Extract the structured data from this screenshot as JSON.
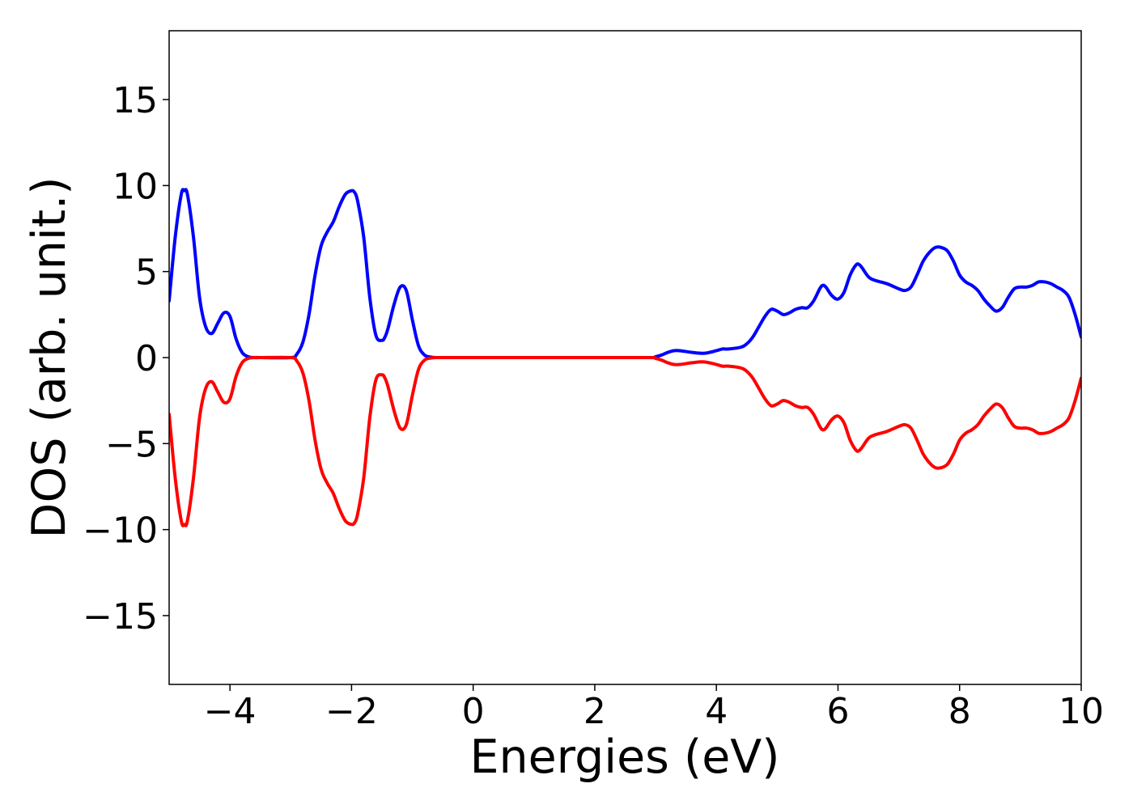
{
  "chart_data": {
    "type": "line",
    "title": "",
    "xlabel": "Energies (eV)",
    "ylabel": "DOS (arb. unit.)",
    "xlim": [
      -5,
      10
    ],
    "ylim": [
      -19,
      19
    ],
    "xticks": [
      -4,
      -2,
      0,
      2,
      4,
      6,
      8,
      10
    ],
    "xtick_labels": [
      "−4",
      "−2",
      "0",
      "2",
      "4",
      "6",
      "8",
      "10"
    ],
    "yticks": [
      15,
      10,
      5,
      0,
      -5,
      -10,
      -15
    ],
    "ytick_labels": [
      "15",
      "10",
      "5",
      "0",
      "−5",
      "−10",
      "−15"
    ],
    "grid": false,
    "legend": "none",
    "series": [
      {
        "color": "#0000ff",
        "x": [
          -5.0,
          -4.9,
          -4.8,
          -4.75,
          -4.7,
          -4.6,
          -4.5,
          -4.4,
          -4.3,
          -4.2,
          -4.1,
          -4.0,
          -3.9,
          -3.8,
          -3.7,
          -3.6,
          -3.5,
          -3.0,
          -2.9,
          -2.8,
          -2.7,
          -2.6,
          -2.5,
          -2.4,
          -2.3,
          -2.2,
          -2.1,
          -2.0,
          -1.95,
          -1.9,
          -1.8,
          -1.7,
          -1.6,
          -1.5,
          -1.45,
          -1.4,
          -1.3,
          -1.2,
          -1.1,
          -1.0,
          -0.9,
          -0.8,
          -0.7,
          -0.6,
          -0.5,
          0.0,
          1.0,
          2.0,
          2.9,
          3.0,
          3.1,
          3.2,
          3.3,
          3.4,
          3.6,
          3.8,
          4.0,
          4.1,
          4.2,
          4.4,
          4.5,
          4.6,
          4.7,
          4.8,
          4.9,
          5.0,
          5.1,
          5.2,
          5.3,
          5.4,
          5.5,
          5.6,
          5.7,
          5.75,
          5.8,
          5.9,
          6.0,
          6.1,
          6.2,
          6.3,
          6.35,
          6.4,
          6.5,
          6.6,
          6.8,
          7.0,
          7.1,
          7.2,
          7.3,
          7.4,
          7.5,
          7.6,
          7.7,
          7.8,
          7.9,
          8.0,
          8.1,
          8.2,
          8.3,
          8.4,
          8.5,
          8.6,
          8.7,
          8.8,
          8.9,
          9.0,
          9.1,
          9.2,
          9.3,
          9.4,
          9.5,
          9.6,
          9.7,
          9.8,
          9.9,
          10.0
        ],
        "y": [
          3.3,
          7.0,
          9.5,
          9.7,
          9.5,
          7.0,
          3.5,
          1.8,
          1.4,
          2.0,
          2.6,
          2.4,
          1.1,
          0.3,
          0.05,
          0.0,
          0.0,
          0.0,
          0.2,
          0.9,
          2.5,
          4.8,
          6.5,
          7.3,
          7.9,
          8.8,
          9.5,
          9.7,
          9.6,
          9.1,
          7.0,
          3.5,
          1.3,
          1.0,
          1.2,
          1.7,
          3.1,
          4.1,
          3.9,
          2.2,
          0.7,
          0.15,
          0.03,
          0.0,
          0.0,
          0.0,
          0.0,
          0.0,
          0.0,
          0.05,
          0.15,
          0.3,
          0.4,
          0.4,
          0.3,
          0.25,
          0.4,
          0.5,
          0.5,
          0.6,
          0.8,
          1.2,
          1.8,
          2.4,
          2.8,
          2.7,
          2.5,
          2.6,
          2.8,
          2.9,
          2.9,
          3.3,
          4.0,
          4.2,
          4.1,
          3.6,
          3.4,
          3.8,
          4.8,
          5.4,
          5.4,
          5.2,
          4.7,
          4.5,
          4.3,
          4.0,
          3.9,
          4.1,
          4.8,
          5.6,
          6.1,
          6.4,
          6.4,
          6.2,
          5.6,
          4.8,
          4.4,
          4.2,
          3.9,
          3.4,
          3.0,
          2.7,
          2.9,
          3.5,
          4.0,
          4.1,
          4.1,
          4.2,
          4.4,
          4.4,
          4.3,
          4.1,
          3.9,
          3.5,
          2.5,
          1.2
        ]
      },
      {
        "color": "#ff0000",
        "x": [
          -5.0,
          -4.9,
          -4.8,
          -4.75,
          -4.7,
          -4.6,
          -4.5,
          -4.4,
          -4.3,
          -4.2,
          -4.1,
          -4.0,
          -3.9,
          -3.8,
          -3.7,
          -3.6,
          -3.5,
          -3.0,
          -2.9,
          -2.8,
          -2.7,
          -2.6,
          -2.5,
          -2.4,
          -2.3,
          -2.2,
          -2.1,
          -2.0,
          -1.95,
          -1.9,
          -1.8,
          -1.7,
          -1.6,
          -1.5,
          -1.45,
          -1.4,
          -1.3,
          -1.2,
          -1.1,
          -1.0,
          -0.9,
          -0.8,
          -0.7,
          -0.6,
          -0.5,
          0.0,
          1.0,
          2.0,
          2.9,
          3.0,
          3.1,
          3.2,
          3.3,
          3.4,
          3.6,
          3.8,
          4.0,
          4.1,
          4.2,
          4.4,
          4.5,
          4.6,
          4.7,
          4.8,
          4.9,
          5.0,
          5.1,
          5.2,
          5.3,
          5.4,
          5.5,
          5.6,
          5.7,
          5.75,
          5.8,
          5.9,
          6.0,
          6.1,
          6.2,
          6.3,
          6.35,
          6.4,
          6.5,
          6.6,
          6.8,
          7.0,
          7.1,
          7.2,
          7.3,
          7.4,
          7.5,
          7.6,
          7.7,
          7.8,
          7.9,
          8.0,
          8.1,
          8.2,
          8.3,
          8.4,
          8.5,
          8.6,
          8.7,
          8.8,
          8.9,
          9.0,
          9.1,
          9.2,
          9.3,
          9.4,
          9.5,
          9.6,
          9.7,
          9.8,
          9.9,
          10.0
        ],
        "y": [
          -3.3,
          -7.0,
          -9.5,
          -9.7,
          -9.5,
          -7.0,
          -3.5,
          -1.8,
          -1.4,
          -2.0,
          -2.6,
          -2.4,
          -1.1,
          -0.3,
          -0.05,
          0.0,
          0.0,
          0.0,
          -0.2,
          -0.9,
          -2.5,
          -4.8,
          -6.5,
          -7.3,
          -7.9,
          -8.8,
          -9.5,
          -9.7,
          -9.6,
          -9.1,
          -7.0,
          -3.5,
          -1.3,
          -1.0,
          -1.2,
          -1.7,
          -3.1,
          -4.1,
          -3.9,
          -2.2,
          -0.7,
          -0.15,
          -0.03,
          0.0,
          0.0,
          0.0,
          0.0,
          0.0,
          0.0,
          -0.05,
          -0.15,
          -0.3,
          -0.4,
          -0.4,
          -0.3,
          -0.25,
          -0.4,
          -0.5,
          -0.5,
          -0.6,
          -0.8,
          -1.2,
          -1.8,
          -2.4,
          -2.8,
          -2.7,
          -2.5,
          -2.6,
          -2.8,
          -2.9,
          -2.9,
          -3.3,
          -4.0,
          -4.2,
          -4.1,
          -3.6,
          -3.4,
          -3.8,
          -4.8,
          -5.4,
          -5.4,
          -5.2,
          -4.7,
          -4.5,
          -4.3,
          -4.0,
          -3.9,
          -4.1,
          -4.8,
          -5.6,
          -6.1,
          -6.4,
          -6.4,
          -6.2,
          -5.6,
          -4.8,
          -4.4,
          -4.2,
          -3.9,
          -3.4,
          -3.0,
          -2.7,
          -2.9,
          -3.5,
          -4.0,
          -4.1,
          -4.1,
          -4.2,
          -4.4,
          -4.4,
          -4.3,
          -4.1,
          -3.9,
          -3.5,
          -2.5,
          -1.2
        ]
      }
    ]
  }
}
